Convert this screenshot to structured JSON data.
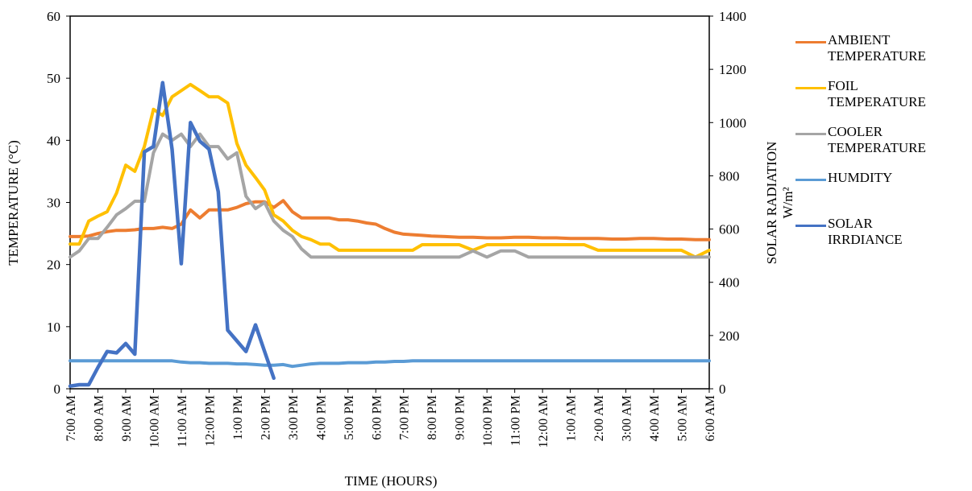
{
  "chart_data": {
    "type": "line",
    "xlabel": "TIME (HOURS)",
    "ylabel": "TEMPERATURE (°C)",
    "y2label": "SOLAR RADIATION",
    "y2unit": "W/m²",
    "ylim": [
      0,
      60
    ],
    "y2lim": [
      0,
      1400
    ],
    "yticks": [
      "0",
      "10",
      "20",
      "30",
      "40",
      "50",
      "60"
    ],
    "y2ticks": [
      "0",
      "200",
      "400",
      "600",
      "800",
      "1000",
      "1200",
      "1400"
    ],
    "x_ticks": [
      "7:00 AM",
      "8:00 AM",
      "9:00 AM",
      "10:00 AM",
      "11:00 AM",
      "12:00 PM",
      "1:00 PM",
      "2:00 PM",
      "3:00 PM",
      "4:00 PM",
      "5:00 PM",
      "6:00 PM",
      "7:00 PM",
      "8:00 PM",
      "9:00 PM",
      "10:00 PM",
      "11:00 PM",
      "12:00 AM",
      "1:00 AM",
      "2:00 AM",
      "3:00 AM",
      "4:00 AM",
      "5:00 AM",
      "6:00 AM"
    ],
    "x_hours": [
      7,
      7.33,
      7.67,
      8,
      8.33,
      8.67,
      9,
      9.33,
      9.67,
      10,
      10.33,
      10.67,
      11,
      11.33,
      11.67,
      12,
      12.33,
      12.67,
      13,
      13.33,
      13.67,
      14,
      14.33,
      14.67,
      15,
      15.33,
      15.67,
      16,
      16.33,
      16.67,
      17,
      17.33,
      17.67,
      18,
      18.33,
      18.67,
      19,
      19.33,
      19.67,
      20,
      20.5,
      21,
      21.5,
      22,
      22.5,
      23,
      23.5,
      24,
      24.5,
      25,
      25.5,
      26,
      26.5,
      27,
      27.5,
      28,
      28.5,
      29,
      29.5,
      30
    ],
    "grid": false,
    "legend_position": "right",
    "series": [
      {
        "name": "AMBIENT\nTEMPERATURE",
        "color": "#ED7D31",
        "axis": "left",
        "values": [
          24.5,
          24.5,
          24.6,
          25,
          25.3,
          25.5,
          25.5,
          25.6,
          25.8,
          25.8,
          26,
          25.8,
          26.5,
          28.8,
          27.5,
          28.8,
          28.8,
          28.8,
          29.2,
          29.8,
          30.1,
          30.1,
          29.2,
          30.3,
          28.5,
          27.5,
          27.5,
          27.5,
          27.5,
          27.2,
          27.2,
          27,
          26.7,
          26.5,
          25.8,
          25.2,
          24.9,
          24.8,
          24.7,
          24.6,
          24.5,
          24.4,
          24.4,
          24.3,
          24.3,
          24.4,
          24.4,
          24.3,
          24.3,
          24.2,
          24.2,
          24.2,
          24.1,
          24.1,
          24.2,
          24.2,
          24.1,
          24.1,
          24,
          24
        ]
      },
      {
        "name": "FOIL\nTEMPERATURE",
        "color": "#FFC000",
        "axis": "left",
        "values": [
          23.3,
          23.3,
          27,
          27.8,
          28.5,
          31.5,
          36,
          35,
          39,
          45,
          44,
          47,
          48,
          49,
          48,
          47,
          47,
          46,
          39.5,
          36,
          34,
          32,
          28,
          27,
          25.5,
          24.5,
          24,
          23.3,
          23.3,
          22.3,
          22.3,
          22.3,
          22.3,
          22.3,
          22.3,
          22.3,
          22.3,
          22.3,
          23.2,
          23.2,
          23.2,
          23.2,
          22.3,
          23.2,
          23.2,
          23.2,
          23.2,
          23.2,
          23.2,
          23.2,
          23.2,
          22.3,
          22.3,
          22.3,
          22.3,
          22.3,
          22.3,
          22.3,
          21.2,
          22.3
        ]
      },
      {
        "name": "COOLER\nTEMPERATURE",
        "color": "#A5A5A5",
        "axis": "left",
        "values": [
          21.2,
          22.2,
          24.2,
          24.2,
          26,
          28,
          29,
          30.2,
          30.2,
          38,
          41,
          40,
          41,
          39,
          41,
          39,
          39,
          37,
          38,
          31,
          29,
          30,
          27,
          25.5,
          24.5,
          22.5,
          21.2,
          21.2,
          21.2,
          21.2,
          21.2,
          21.2,
          21.2,
          21.2,
          21.2,
          21.2,
          21.2,
          21.2,
          21.2,
          21.2,
          21.2,
          21.2,
          22.2,
          21.2,
          22.2,
          22.2,
          21.2,
          21.2,
          21.2,
          21.2,
          21.2,
          21.2,
          21.2,
          21.2,
          21.2,
          21.2,
          21.2,
          21.2,
          21.2,
          21.2
        ]
      },
      {
        "name": "HUMDITY",
        "color": "#5B9BD5",
        "axis": "left",
        "values": [
          4.5,
          4.5,
          4.5,
          4.5,
          4.5,
          4.5,
          4.5,
          4.5,
          4.5,
          4.5,
          4.5,
          4.5,
          4.3,
          4.2,
          4.2,
          4.1,
          4.1,
          4.1,
          4,
          4,
          3.9,
          3.8,
          3.8,
          3.9,
          3.6,
          3.8,
          4,
          4.1,
          4.1,
          4.1,
          4.2,
          4.2,
          4.2,
          4.3,
          4.3,
          4.4,
          4.4,
          4.5,
          4.5,
          4.5,
          4.5,
          4.5,
          4.5,
          4.5,
          4.5,
          4.5,
          4.5,
          4.5,
          4.5,
          4.5,
          4.5,
          4.5,
          4.5,
          4.5,
          4.5,
          4.5,
          4.5,
          4.5,
          4.5,
          4.5
        ]
      },
      {
        "name": "SOLAR\nIRRDIANCE",
        "color": "#4472C4",
        "axis": "right",
        "x_hours": [
          7,
          7.33,
          7.67,
          8,
          8.33,
          8.67,
          9,
          9.33,
          9.67,
          10,
          10.33,
          10.67,
          11,
          11.33,
          11.67,
          12,
          12.33,
          12.67,
          13,
          13.33,
          13.67,
          14,
          14.33,
          14.67,
          15,
          15.33,
          15.67,
          16,
          16.33,
          16.67,
          17,
          17.33,
          17.67,
          18
        ],
        "values": [
          10,
          15,
          15,
          80,
          140,
          135,
          170,
          130,
          890,
          910,
          1150,
          900,
          470,
          1000,
          930,
          900,
          740,
          220,
          180,
          140,
          240,
          140,
          40,
          null,
          null,
          null,
          null,
          null,
          null,
          null,
          null,
          null,
          null,
          null
        ]
      }
    ]
  }
}
